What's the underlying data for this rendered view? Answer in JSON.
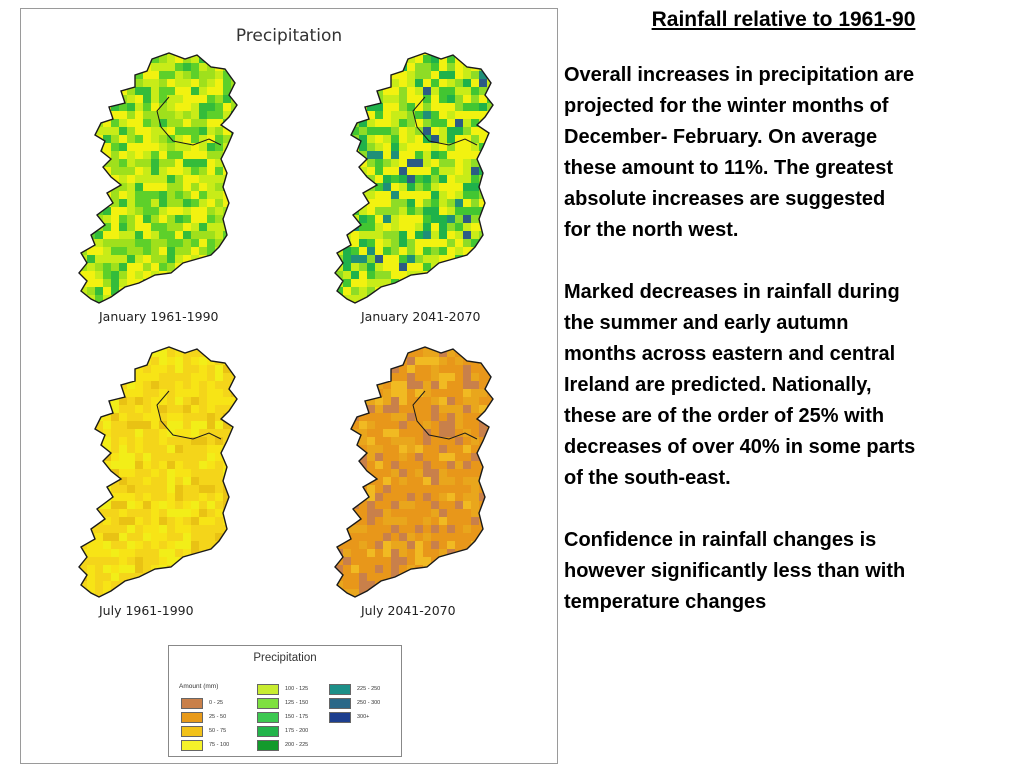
{
  "figure": {
    "title": "Precipitation",
    "panels": [
      {
        "caption": "January 1961-1990",
        "palette": [
          "#f2f210",
          "#c8ec18",
          "#9fe01c",
          "#5dd02a",
          "#34bc3a"
        ],
        "weights": [
          0.28,
          0.22,
          0.2,
          0.18,
          0.12
        ]
      },
      {
        "caption": "January 2041-2070",
        "palette": [
          "#f2f210",
          "#c8ec18",
          "#8edc26",
          "#42c632",
          "#1fb24a",
          "#1f8f78",
          "#2c5c84"
        ],
        "weights": [
          0.3,
          0.22,
          0.16,
          0.13,
          0.1,
          0.05,
          0.04
        ]
      },
      {
        "caption": "July 1961-1990",
        "palette": [
          "#f4d51a",
          "#f7e416",
          "#f2ee18",
          "#e9c214"
        ],
        "weights": [
          0.45,
          0.3,
          0.15,
          0.1
        ]
      },
      {
        "caption": "July 2041-2070",
        "palette": [
          "#e8971a",
          "#e9a61c",
          "#c9804a",
          "#f1ba22"
        ],
        "weights": [
          0.5,
          0.2,
          0.2,
          0.1
        ]
      }
    ]
  },
  "legend": {
    "title": "Precipitation",
    "unit_label": "Amount (mm)",
    "columns": [
      [
        {
          "label": "0 - 25",
          "color": "#c9804a"
        },
        {
          "label": "25 - 50",
          "color": "#e89a1a"
        },
        {
          "label": "50 - 75",
          "color": "#f2c21a"
        },
        {
          "label": "75 - 100",
          "color": "#f5f22a"
        }
      ],
      [
        {
          "label": "100 - 125",
          "color": "#c8ec30"
        },
        {
          "label": "125 - 150",
          "color": "#7ee040"
        },
        {
          "label": "150 - 175",
          "color": "#3cc850"
        },
        {
          "label": "175 - 200",
          "color": "#22b44a"
        },
        {
          "label": "200 - 225",
          "color": "#139a2c"
        }
      ],
      [
        {
          "label": "225 - 250",
          "color": "#1c8f88"
        },
        {
          "label": "250 - 300",
          "color": "#2a6888"
        },
        {
          "label": "300+",
          "color": "#1c3e8e"
        }
      ]
    ]
  },
  "text": {
    "heading": "Rainfall relative to 1961-90",
    "paragraphs": [
      "Overall increases in precipitation are\nprojected for the winter months of\nDecember- February. On average\nthese amount to 11%. The greatest\nabsolute increases are suggested\nfor the north west.",
      "Marked decreases in rainfall during\nthe summer and early autumn\nmonths across eastern and central\nIreland are predicted. Nationally,\nthese are of the order of 25% with\ndecreases of over 40% in some parts\nof the south-east.",
      "Confidence in rainfall changes is\nhowever significantly less than with\ntemperature changes"
    ]
  }
}
